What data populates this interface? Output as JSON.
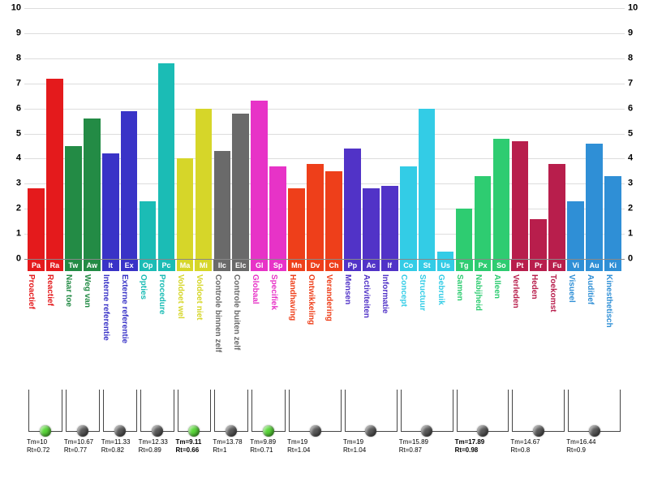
{
  "chart": {
    "type": "bar",
    "ylim": [
      0,
      10
    ],
    "ytick_step": 1,
    "background_color": "#ffffff",
    "grid_color": "#dddddd",
    "axis_fontsize": 11,
    "bars": [
      {
        "abbr": "Pa",
        "label": "Proactief",
        "value": 2.8,
        "color": "#e41a1c"
      },
      {
        "abbr": "Ra",
        "label": "Reactief",
        "value": 7.2,
        "color": "#e41a1c"
      },
      {
        "abbr": "Tw",
        "label": "Naar toe",
        "value": 4.5,
        "color": "#238b45"
      },
      {
        "abbr": "Aw",
        "label": "Weg van",
        "value": 5.6,
        "color": "#238b45"
      },
      {
        "abbr": "It",
        "label": "Interne referentie",
        "value": 4.2,
        "color": "#3933c7"
      },
      {
        "abbr": "Ex",
        "label": "Externe referentie",
        "value": 5.9,
        "color": "#3933c7"
      },
      {
        "abbr": "Op",
        "label": "Opties",
        "value": 2.3,
        "color": "#1bbcb5"
      },
      {
        "abbr": "Pc",
        "label": "Procedure",
        "value": 7.8,
        "color": "#1bbcb5"
      },
      {
        "abbr": "Ma",
        "label": "Voldoet wel",
        "value": 4.0,
        "color": "#d6d629"
      },
      {
        "abbr": "Mi",
        "label": "Voldoet niet",
        "value": 6.0,
        "color": "#d6d629"
      },
      {
        "abbr": "Ilc",
        "label": "Controle binnen zelf",
        "value": 4.3,
        "color": "#6a6a6a"
      },
      {
        "abbr": "Elc",
        "label": "Controle buiten zelf",
        "value": 5.8,
        "color": "#6a6a6a"
      },
      {
        "abbr": "Gl",
        "label": "Globaal",
        "value": 6.3,
        "color": "#e733c7"
      },
      {
        "abbr": "Sp",
        "label": "Specifiek",
        "value": 3.7,
        "color": "#e733c7"
      },
      {
        "abbr": "Mn",
        "label": "Handhaving",
        "value": 2.8,
        "color": "#ee3f1a"
      },
      {
        "abbr": "Dv",
        "label": "Ontwikkeling",
        "value": 3.8,
        "color": "#ee3f1a"
      },
      {
        "abbr": "Ch",
        "label": "Verandering",
        "value": 3.5,
        "color": "#ee3f1a"
      },
      {
        "abbr": "Pp",
        "label": "Mensen",
        "value": 4.4,
        "color": "#5133c7"
      },
      {
        "abbr": "Ac",
        "label": "Activiteiten",
        "value": 2.8,
        "color": "#5133c7"
      },
      {
        "abbr": "If",
        "label": "Informatie",
        "value": 2.9,
        "color": "#5133c7"
      },
      {
        "abbr": "Co",
        "label": "Concept",
        "value": 3.7,
        "color": "#33cce6"
      },
      {
        "abbr": "St",
        "label": "Structuur",
        "value": 6.0,
        "color": "#33cce6"
      },
      {
        "abbr": "Us",
        "label": "Gebruik",
        "value": 0.3,
        "color": "#33cce6"
      },
      {
        "abbr": "Tg",
        "label": "Samen",
        "value": 2.0,
        "color": "#2ecc71"
      },
      {
        "abbr": "Px",
        "label": "Nabijheid",
        "value": 3.3,
        "color": "#2ecc71"
      },
      {
        "abbr": "So",
        "label": "Alleen",
        "value": 4.8,
        "color": "#2ecc71"
      },
      {
        "abbr": "Pt",
        "label": "Verleden",
        "value": 4.7,
        "color": "#b81e4c"
      },
      {
        "abbr": "Pr",
        "label": "Heden",
        "value": 1.6,
        "color": "#b81e4c"
      },
      {
        "abbr": "Fu",
        "label": "Toekomst",
        "value": 3.8,
        "color": "#b81e4c"
      },
      {
        "abbr": "Vi",
        "label": "Visueel",
        "value": 2.3,
        "color": "#2f8fd6"
      },
      {
        "abbr": "Au",
        "label": "Auditief",
        "value": 4.6,
        "color": "#2f8fd6"
      },
      {
        "abbr": "Ki",
        "label": "Kinesthetisch",
        "value": 3.3,
        "color": "#2f8fd6"
      }
    ],
    "groups": [
      {
        "start": 0,
        "end": 2,
        "tm": "Tm=10",
        "rt": "Rt=0.72",
        "dot": "green",
        "bold": false
      },
      {
        "start": 2,
        "end": 4,
        "tm": "Tm=10.67",
        "rt": "Rt=0.77",
        "dot": "grey",
        "bold": false
      },
      {
        "start": 4,
        "end": 6,
        "tm": "Tm=11.33",
        "rt": "Rt=0.82",
        "dot": "grey",
        "bold": false
      },
      {
        "start": 6,
        "end": 8,
        "tm": "Tm=12.33",
        "rt": "Rt=0.89",
        "dot": "grey",
        "bold": false
      },
      {
        "start": 8,
        "end": 10,
        "tm": "Tm=9.11",
        "rt": "Rt=0.66",
        "dot": "green",
        "bold": true
      },
      {
        "start": 10,
        "end": 12,
        "tm": "Tm=13.78",
        "rt": "Rt=1",
        "dot": "grey",
        "bold": false
      },
      {
        "start": 12,
        "end": 14,
        "tm": "Tm=9.89",
        "rt": "Rt=0.71",
        "dot": "green",
        "bold": false
      },
      {
        "start": 14,
        "end": 17,
        "tm": "Tm=19",
        "rt": "Rt=1.04",
        "dot": "grey",
        "bold": false
      },
      {
        "start": 17,
        "end": 20,
        "tm": "Tm=19",
        "rt": "Rt=1.04",
        "dot": "grey",
        "bold": false
      },
      {
        "start": 20,
        "end": 23,
        "tm": "Tm=15.89",
        "rt": "Rt=0.87",
        "dot": "grey",
        "bold": false
      },
      {
        "start": 23,
        "end": 26,
        "tm": "Tm=17.89",
        "rt": "Rt=0.98",
        "dot": "grey",
        "bold": true
      },
      {
        "start": 26,
        "end": 29,
        "tm": "Tm=14.67",
        "rt": "Rt=0.8",
        "dot": "grey",
        "bold": false
      },
      {
        "start": 29,
        "end": 32,
        "tm": "Tm=16.44",
        "rt": "Rt=0.9",
        "dot": "grey",
        "bold": false
      }
    ],
    "dot_colors": {
      "green": "#5bd83b",
      "grey": "#5a5a5a"
    }
  }
}
